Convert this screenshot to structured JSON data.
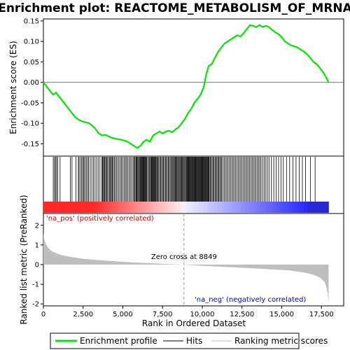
{
  "chart_data": {
    "type": "line",
    "title": "Enrichment plot: REACTOME_METABOLISM_OF_MRNA",
    "colors": {
      "es_line": "#00e600",
      "hits": "#000000",
      "metric_fill": "#bebebe",
      "pos_text": "#cc0000",
      "neg_text": "#0000cc",
      "zero_line": "#999999"
    },
    "top_panel": {
      "ylabel": "Enrichment score (ES)",
      "ylim": [
        -0.18,
        0.155
      ],
      "yticks": [
        -0.15,
        -0.1,
        -0.05,
        0.0,
        0.05,
        0.1,
        0.15
      ],
      "ytick_labels": [
        "-0.15",
        "-0.10",
        "-0.05",
        "0.00",
        "0.05",
        "0.10",
        "0.15"
      ],
      "series": [
        {
          "name": "Enrichment profile",
          "x": [
            0,
            300,
            600,
            800,
            1000,
            1400,
            1800,
            2000,
            2300,
            2600,
            2900,
            3200,
            3500,
            3700,
            3900,
            4100,
            4300,
            4600,
            4900,
            5100,
            5300,
            5500,
            5700,
            5900,
            6100,
            6300,
            6500,
            6700,
            6900,
            7100,
            7300,
            7500,
            7700,
            7900,
            8100,
            8300,
            8500,
            8700,
            8900,
            9100,
            9300,
            9500,
            9700,
            9900,
            10100,
            10250,
            10400,
            10600,
            10800,
            11000,
            11200,
            11400,
            11600,
            11800,
            12000,
            12200,
            12400,
            12600,
            12800,
            13000,
            13200,
            13400,
            13600,
            13800,
            14000,
            14200,
            14400,
            14600,
            14800,
            15000,
            15200,
            15400,
            15600,
            15800,
            16000,
            16200,
            16400,
            16600,
            16800,
            17000,
            17200,
            17400,
            17600,
            17800,
            17950
          ],
          "y": [
            0.0,
            -0.015,
            -0.03,
            -0.025,
            -0.035,
            -0.055,
            -0.075,
            -0.085,
            -0.093,
            -0.097,
            -0.1,
            -0.11,
            -0.125,
            -0.13,
            -0.128,
            -0.132,
            -0.135,
            -0.138,
            -0.14,
            -0.142,
            -0.145,
            -0.15,
            -0.155,
            -0.16,
            -0.155,
            -0.145,
            -0.14,
            -0.145,
            -0.13,
            -0.125,
            -0.12,
            -0.125,
            -0.12,
            -0.118,
            -0.122,
            -0.115,
            -0.11,
            -0.1,
            -0.09,
            -0.075,
            -0.065,
            -0.05,
            -0.04,
            -0.03,
            -0.01,
            0.02,
            0.04,
            0.045,
            0.06,
            0.075,
            0.085,
            0.095,
            0.1,
            0.105,
            0.11,
            0.115,
            0.112,
            0.12,
            0.13,
            0.14,
            0.138,
            0.135,
            0.14,
            0.135,
            0.138,
            0.135,
            0.128,
            0.122,
            0.118,
            0.11,
            0.1,
            0.095,
            0.09,
            0.088,
            0.085,
            0.08,
            0.075,
            0.068,
            0.06,
            0.05,
            0.045,
            0.035,
            0.025,
            0.012,
            0.0
          ]
        }
      ]
    },
    "hits_panel": {
      "name": "Hits",
      "positions": [
        620,
        700,
        760,
        830,
        900,
        1050,
        1700,
        1800,
        2050,
        2200,
        2250,
        2350,
        2420,
        2500,
        2550,
        2620,
        2700,
        2780,
        2850,
        2950,
        3050,
        3150,
        3250,
        3350,
        3450,
        3560,
        3680,
        3720,
        3780,
        3830,
        3870,
        3930,
        3980,
        4040,
        4110,
        4180,
        4220,
        4280,
        4330,
        4380,
        4460,
        4520,
        4600,
        4680,
        4760,
        4850,
        4920,
        5000,
        5080,
        5160,
        5230,
        5310,
        5390,
        5470,
        5550,
        5640,
        5700,
        5760,
        5820,
        5860,
        5900,
        5950,
        6000,
        6050,
        6100,
        6140,
        6180,
        6220,
        6260,
        6300,
        6340,
        6380,
        6420,
        6460,
        6500,
        6560,
        6620,
        6680,
        6740,
        6780,
        6820,
        6860,
        6900,
        6940,
        6980,
        7020,
        7060,
        7100,
        7150,
        7200,
        7260,
        7320,
        7380,
        7440,
        7500,
        7560,
        7620,
        7680,
        7740,
        7800,
        7860,
        7920,
        7980,
        8040,
        8100,
        8150,
        8200,
        8250,
        8300,
        8350,
        8400,
        8450,
        8500,
        8550,
        8600,
        8650,
        8700,
        8750,
        8800,
        8850,
        8900,
        8950,
        9000,
        9040,
        9080,
        9120,
        9160,
        9200,
        9240,
        9280,
        9320,
        9360,
        9400,
        9440,
        9480,
        9520,
        9560,
        9600,
        9640,
        9680,
        9720,
        9760,
        9800,
        9840,
        9880,
        9920,
        9960,
        10000,
        10040,
        10080,
        10120,
        10160,
        10200,
        10240,
        10280,
        10320,
        10360,
        10400,
        10440,
        10500,
        10560,
        10620,
        10680,
        10740,
        10800,
        10860,
        10920,
        10980,
        11040,
        11100,
        11160,
        11220,
        11300,
        11380,
        11460,
        11540,
        11620,
        11700,
        11780,
        11860,
        11940,
        12020,
        12100,
        12180,
        12260,
        12340,
        12420,
        12500,
        12580,
        12660,
        12740,
        12820,
        12900,
        12980,
        13060,
        13140,
        13220,
        13300,
        13380,
        13460,
        13540,
        13620,
        13700,
        13800,
        13900,
        14000,
        14100,
        14200,
        14350,
        14500,
        14650,
        14800,
        14950,
        15100,
        15300,
        15500,
        15700,
        15900,
        16100,
        16300,
        16500,
        16800,
        17100
      ]
    },
    "metric_panel": {
      "name": "Ranking metric scores",
      "ylabel": "Ranked list metric (PreRanked)",
      "ylim": [
        -2.1,
        2.6
      ],
      "yticks": [
        -2,
        -1,
        0,
        1,
        2
      ],
      "ytick_labels": [
        "-2",
        "-1",
        "0",
        "1",
        "2"
      ],
      "x": [
        0,
        50,
        150,
        300,
        500,
        800,
        1200,
        1800,
        2500,
        3500,
        4500,
        5500,
        6500,
        7500,
        8500,
        8849,
        9500,
        10500,
        11500,
        12500,
        13500,
        14500,
        15500,
        16000,
        16500,
        17000,
        17300,
        17500,
        17700,
        17800,
        17900,
        17950
      ],
      "values": [
        1.6,
        1.3,
        1.05,
        0.85,
        0.7,
        0.58,
        0.47,
        0.38,
        0.3,
        0.22,
        0.17,
        0.12,
        0.08,
        0.04,
        0.01,
        0.0,
        -0.04,
        -0.08,
        -0.12,
        -0.16,
        -0.2,
        -0.25,
        -0.3,
        -0.35,
        -0.42,
        -0.52,
        -0.62,
        -0.72,
        -0.9,
        -1.1,
        -1.5,
        -1.9
      ],
      "zero_cross_rank": 8849,
      "zero_cross_label": "Zero cross at 8849",
      "pos_label": "'na_pos' (positively correlated)",
      "neg_label": "'na_neg' (negatively correlated)"
    },
    "x_axis": {
      "xlabel": "Rank in Ordered Dataset",
      "xlim": [
        0,
        18900
      ],
      "xticks": [
        0,
        2500,
        5000,
        7500,
        10000,
        12500,
        15000,
        17500
      ],
      "xtick_labels": [
        "0",
        "2,500",
        "5,000",
        "7,500",
        "10,000",
        "12,500",
        "15,000",
        "17,500"
      ],
      "max_rank": 17950
    },
    "legend": {
      "placement": "bottom",
      "items": [
        {
          "label": "Enrichment profile",
          "color": "#00e600",
          "kind": "line-thick"
        },
        {
          "label": "Hits",
          "color": "#000000",
          "kind": "line-thin"
        },
        {
          "label": "Ranking metric scores",
          "color": "#bebebe",
          "kind": "line-thin"
        }
      ]
    }
  }
}
